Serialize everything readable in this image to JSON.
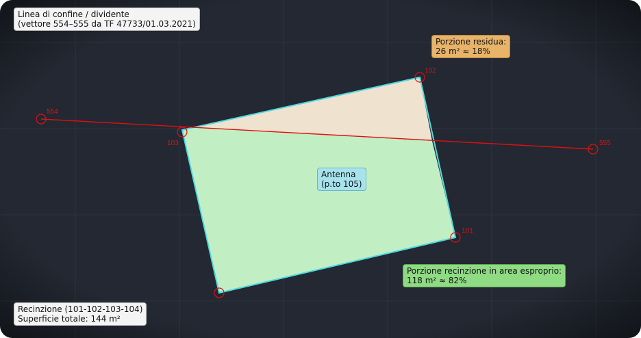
{
  "boundary_title": {
    "line1": "Linea di confine / dividente",
    "line2": "(vettore 554–555 da TF 47733/01.03.2021)"
  },
  "residual": {
    "line1": "Porzione residua:",
    "line2": "26 m² ≈ 18%"
  },
  "antenna": {
    "line1": "Antenna",
    "line2": "(p.to 105)"
  },
  "expropriation": {
    "line1": "Porzione recinzione in area esproprio:",
    "line2": "118 m² ≈ 82%"
  },
  "fence": {
    "line1": "Recinzione (101-102-103-104)",
    "line2": "Superficie totale: 144 m²"
  },
  "points": {
    "p554": "554",
    "p555": "555",
    "p101": "101",
    "p102": "102",
    "p103": "103"
  },
  "colors": {
    "background": "#232832",
    "grid": "#2e3540",
    "boundary_line": "#e01010",
    "point_marker": "#e01010",
    "fence_outline": "#4fd8e0",
    "residual_fill": "#efe2cf",
    "expropriation_fill": "#c2eec4"
  }
}
